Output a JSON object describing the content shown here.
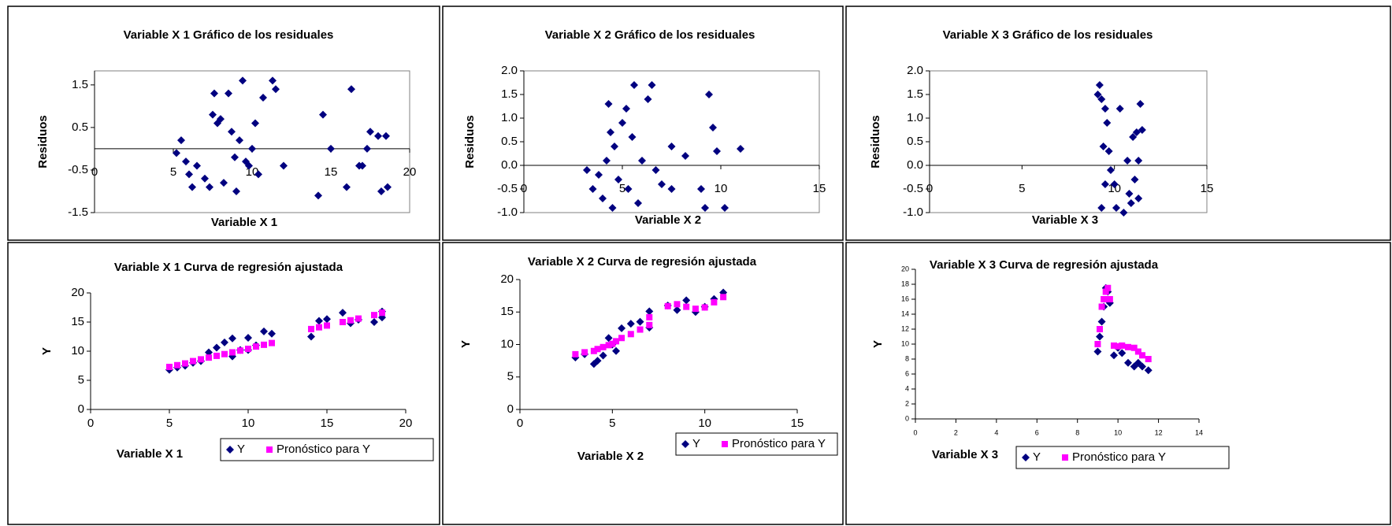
{
  "chart_data": [
    {
      "type": "scatter",
      "title": "Variable X 1 Gráfico de los residuales",
      "x_label": "Variable X 1",
      "y_label": "Residuos",
      "color": "#000080",
      "marker": "diamond",
      "x": [
        5.2,
        5.5,
        5.8,
        6,
        6.2,
        6.5,
        7,
        7.3,
        7.5,
        7.6,
        7.8,
        8,
        8.2,
        8.5,
        8.7,
        8.9,
        9,
        9.2,
        9.4,
        9.6,
        9.8,
        10,
        10.2,
        10.4,
        10.7,
        11.3,
        11.5,
        12,
        14.2,
        14.5,
        15,
        16,
        16.3,
        16.8,
        17,
        17.3,
        17.5,
        18,
        18.5,
        18.2,
        18.6
      ],
      "values": [
        -0.1,
        0.2,
        -0.3,
        -0.6,
        -0.9,
        -0.4,
        -0.7,
        -0.9,
        0.8,
        1.3,
        0.6,
        0.7,
        -0.8,
        1.3,
        0.4,
        -0.2,
        -1.0,
        0.2,
        1.6,
        -0.3,
        -0.4,
        0,
        0.6,
        -0.6,
        1.2,
        1.6,
        1.4,
        -0.4,
        -1.1,
        0.8,
        0,
        -0.9,
        1.4,
        -0.4,
        -0.4,
        0,
        0.4,
        0.3,
        0.3,
        -1.0,
        -0.9
      ],
      "xlim": [
        0,
        20
      ],
      "xticks": [
        0,
        5,
        10,
        15,
        20
      ],
      "ylim": [
        -1.5,
        1.83
      ],
      "yticks": [
        -1.5,
        -0.5,
        0.5,
        1.5
      ]
    },
    {
      "type": "scatter",
      "title": "Variable X 2 Gráfico de los residuales",
      "x_label": "Variable X 2",
      "y_label": "Residuos",
      "color": "#000080",
      "marker": "diamond",
      "x": [
        3.2,
        3.5,
        3.8,
        4,
        4.2,
        4.3,
        4.4,
        4.5,
        4.6,
        4.8,
        5,
        5.2,
        5.3,
        5.5,
        5.6,
        5.8,
        6,
        6.3,
        6.5,
        6.7,
        7,
        7.5,
        7.5,
        8.2,
        9,
        9.2,
        9.4,
        9.6,
        9.8,
        10.2,
        11
      ],
      "values": [
        -0.1,
        -0.5,
        -0.2,
        -0.7,
        0.1,
        1.3,
        0.7,
        -0.9,
        0.4,
        -0.3,
        0.9,
        1.2,
        -0.5,
        0.6,
        1.7,
        -0.8,
        0.1,
        1.4,
        1.7,
        -0.1,
        -0.4,
        0.4,
        -0.5,
        0.2,
        -0.5,
        -0.9,
        1.5,
        0.8,
        0.3,
        -0.9,
        0.35
      ],
      "xlim": [
        0,
        15
      ],
      "xticks": [
        0,
        5,
        10,
        15
      ],
      "ylim": [
        -1,
        2
      ],
      "yticks": [
        {
          "value": -1,
          "label": "-1.0"
        },
        -0.5,
        {
          "value": 0,
          "label": "0.0"
        },
        0.5,
        {
          "value": 1,
          "label": "1.0"
        },
        1.5,
        {
          "value": 2,
          "label": "2.0"
        }
      ]
    },
    {
      "type": "scatter",
      "title": "Variable X 3 Gráfico de los residuales",
      "x_label": "Variable X 3",
      "y_label": "Residuos",
      "color": "#000080",
      "marker": "diamond",
      "x": [
        9.1,
        9.2,
        9.3,
        9.4,
        9.5,
        9.3,
        9.6,
        9.7,
        9.8,
        10,
        10.1,
        10.3,
        10.5,
        10.7,
        10.8,
        11,
        11.1,
        11.2,
        11.3,
        11.4,
        11.5,
        11.3,
        9.5,
        10.9
      ],
      "values": [
        1.5,
        1.7,
        1.4,
        0.4,
        -0.4,
        -0.9,
        0.9,
        0.3,
        -0.1,
        -0.4,
        -0.9,
        1.2,
        -1.0,
        0.1,
        -0.6,
        0.6,
        -0.3,
        0.7,
        -0.7,
        1.3,
        0.75,
        0.1,
        1.2,
        -0.8
      ],
      "xlim": [
        0,
        15
      ],
      "xticks": [
        0,
        5,
        10,
        15
      ],
      "ylim": [
        -1,
        2
      ],
      "yticks": [
        {
          "value": -1,
          "label": "-1.0"
        },
        -0.5,
        {
          "value": 0,
          "label": "0.0"
        },
        0.5,
        {
          "value": 1,
          "label": "1.0"
        },
        1.5,
        {
          "value": 2,
          "label": "2.0"
        }
      ]
    },
    {
      "type": "scatter",
      "title": "Variable X 1 Curva de regresión ajustada",
      "x_label": "Variable X 1",
      "y_label": "Y",
      "legend": "bottom-right",
      "x": [
        5,
        5.5,
        6,
        6.5,
        7,
        7.5,
        8,
        8.5,
        9,
        9,
        9.5,
        10,
        10,
        10.5,
        11,
        11.5,
        14,
        14.5,
        15,
        16,
        16.5,
        17,
        18,
        18.5,
        18.5
      ],
      "series": [
        {
          "name": "Y",
          "color": "#000080",
          "marker": "diamond",
          "values": [
            6.8,
            7.2,
            7.5,
            8.0,
            8.3,
            9.8,
            10.6,
            11.5,
            12.2,
            9.1,
            10.2,
            12.3,
            10.2,
            11.0,
            13.4,
            13.0,
            12.5,
            15.2,
            15.5,
            16.6,
            14.8,
            15.4,
            15.0,
            15.8,
            16.8
          ]
        },
        {
          "name": "Pronóstico para Y",
          "color": "#ff00ff",
          "marker": "square",
          "values": [
            7.3,
            7.6,
            7.9,
            8.3,
            8.6,
            8.9,
            9.2,
            9.5,
            9.8,
            9.8,
            10.1,
            10.4,
            10.4,
            10.8,
            11.1,
            11.4,
            13.8,
            14.1,
            14.4,
            15.0,
            15.3,
            15.6,
            16.2,
            16.6,
            16.6
          ]
        }
      ],
      "xlim": [
        0,
        20
      ],
      "xticks": [
        0,
        5,
        10,
        15,
        20
      ],
      "ylim": [
        0,
        20
      ],
      "yticks": [
        0,
        5,
        10,
        15,
        20
      ]
    },
    {
      "type": "scatter",
      "title": "Variable X 2 Curva de regresión ajustada",
      "x_label": "Variable X 2",
      "y_label": "Y",
      "legend": "bottom-right",
      "x": [
        3,
        3.5,
        4,
        4.2,
        4.5,
        4.8,
        5,
        5.2,
        5.5,
        6,
        6.5,
        7,
        7,
        8,
        8.5,
        9,
        9.5,
        10,
        10.5,
        11
      ],
      "series": [
        {
          "name": "Y",
          "color": "#000080",
          "marker": "diamond",
          "values": [
            8.0,
            8.5,
            7.0,
            7.5,
            8.3,
            11.0,
            10.0,
            9.0,
            12.5,
            13.2,
            13.5,
            12.6,
            15.1,
            16.0,
            15.3,
            16.8,
            15.0,
            15.8,
            17.0,
            18.0
          ]
        },
        {
          "name": "Pronóstico para Y",
          "color": "#ff00ff",
          "marker": "square",
          "values": [
            8.5,
            8.8,
            9.0,
            9.3,
            9.6,
            9.9,
            10.1,
            10.5,
            11.0,
            11.6,
            12.3,
            13.0,
            14.2,
            15.9,
            16.2,
            15.8,
            15.5,
            15.7,
            16.5,
            17.3
          ]
        }
      ],
      "xlim": [
        0,
        15
      ],
      "xticks": [
        0,
        5,
        10,
        15
      ],
      "ylim": [
        0,
        20
      ],
      "yticks": [
        0,
        5,
        10,
        15,
        20
      ]
    },
    {
      "type": "scatter",
      "title": "Variable X 3 Curva de regresión ajustada",
      "x_label": "Variable X 3",
      "y_label": "Y",
      "legend": "bottom-right",
      "x": [
        9,
        9.1,
        9.2,
        9.3,
        9.4,
        9.5,
        9.6,
        9.8,
        10,
        10.2,
        10.5,
        10.8,
        11,
        11.2,
        11.5
      ],
      "series": [
        {
          "name": "Y",
          "color": "#000080",
          "marker": "diamond",
          "values": [
            9.0,
            11,
            13,
            15,
            17.5,
            17.0,
            15.5,
            8.5,
            9.5,
            8.8,
            7.5,
            7.0,
            7.5,
            7.0,
            6.5
          ]
        },
        {
          "name": "Pronóstico para Y",
          "color": "#ff00ff",
          "marker": "square",
          "values": [
            10.0,
            12.0,
            15.0,
            16.0,
            17.0,
            17.5,
            16.0,
            9.8,
            9.7,
            9.8,
            9.6,
            9.5,
            9.0,
            8.5,
            8.0
          ]
        }
      ],
      "xlim": [
        0,
        14
      ],
      "xticks": [
        0,
        2,
        4,
        6,
        8,
        10,
        12,
        14
      ],
      "ylim": [
        0,
        20
      ],
      "yticks": [
        0,
        2,
        4,
        6,
        8,
        10,
        12,
        14,
        16,
        18,
        20
      ]
    }
  ]
}
